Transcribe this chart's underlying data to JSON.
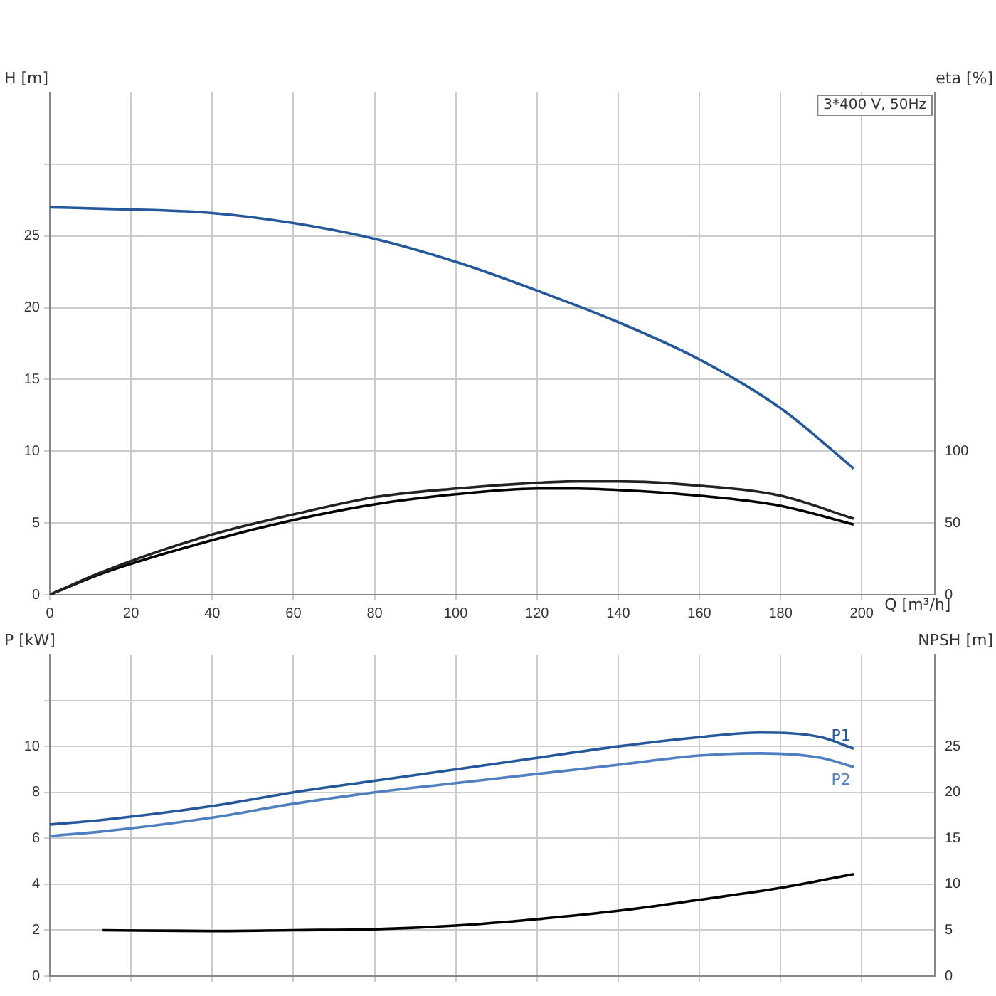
{
  "chart_data": [
    {
      "type": "line",
      "xlabel": "Q [m³/h]",
      "ylabel": "H [m]",
      "y2label": "eta [%]",
      "annotations": [
        "3*400 V, 50Hz"
      ],
      "xlim": [
        0,
        218
      ],
      "xticks": [
        0,
        20,
        40,
        60,
        80,
        100,
        120,
        140,
        160,
        180,
        200
      ],
      "ylim": [
        0,
        35
      ],
      "yticks": [
        0,
        5,
        10,
        15,
        20,
        25,
        {
          "value": 30,
          "label": null
        }
      ],
      "y2lim": [
        0,
        350
      ],
      "y2ticks": [
        0,
        50,
        100
      ],
      "grid": true,
      "legend": false,
      "series": [
        {
          "color": "#25589a",
          "x": [
            0,
            13,
            40,
            60,
            80,
            100,
            120,
            140,
            160,
            180,
            198
          ],
          "values": [
            27,
            26.9,
            26.6,
            25.9,
            24.8,
            23.2,
            21.2,
            19.0,
            16.4,
            13.0,
            8.8
          ]
        },
        {
          "color": "#222222",
          "axis": "y2",
          "x": [
            0,
            13,
            40,
            60,
            80,
            100,
            120,
            130,
            140,
            160,
            180,
            198
          ],
          "values": [
            0,
            16,
            42,
            56,
            68,
            74,
            78,
            79,
            79,
            76,
            69,
            53
          ]
        },
        {
          "color": "#000000",
          "axis": "y2",
          "x": [
            0,
            13,
            40,
            60,
            80,
            100,
            120,
            130,
            140,
            160,
            180,
            198
          ],
          "values": [
            0,
            15,
            38,
            52,
            63,
            70,
            74,
            74,
            73,
            69,
            62,
            49
          ]
        }
      ]
    },
    {
      "type": "line",
      "ylabel": "P [kW]",
      "y2label": "NPSH [m]",
      "xlim": [
        0,
        218
      ],
      "xticks": [
        0,
        20,
        40,
        60,
        80,
        100,
        120,
        140,
        160,
        180,
        200
      ],
      "tick_labels": "y",
      "ylim": [
        0,
        14
      ],
      "yticks": [
        0,
        2,
        4,
        6,
        8,
        10,
        {
          "value": 12,
          "label": null
        }
      ],
      "y2lim": [
        0,
        35
      ],
      "y2ticks": [
        0,
        5,
        10,
        15,
        20,
        25
      ],
      "grid": true,
      "legend": false,
      "series": [
        {
          "name": "P1",
          "color": "#25589a",
          "x": [
            0,
            13,
            40,
            60,
            80,
            100,
            120,
            140,
            160,
            175,
            190,
            198
          ],
          "values": [
            6.6,
            6.8,
            7.4,
            8.0,
            8.5,
            9.0,
            9.5,
            10.0,
            10.4,
            10.6,
            10.4,
            9.9
          ]
        },
        {
          "name": "P2",
          "color": "#4f7fc0",
          "x": [
            0,
            13,
            40,
            60,
            80,
            100,
            120,
            140,
            160,
            175,
            190,
            198
          ],
          "values": [
            6.1,
            6.3,
            6.9,
            7.5,
            8.0,
            8.4,
            8.8,
            9.2,
            9.6,
            9.7,
            9.5,
            9.1
          ]
        },
        {
          "color": "#000000",
          "axis": "y2",
          "x": [
            13,
            40,
            60,
            80,
            100,
            120,
            140,
            160,
            180,
            198
          ],
          "values": [
            5.0,
            4.9,
            5.0,
            5.1,
            5.5,
            6.2,
            7.1,
            8.3,
            9.6,
            11.1
          ]
        }
      ]
    }
  ]
}
